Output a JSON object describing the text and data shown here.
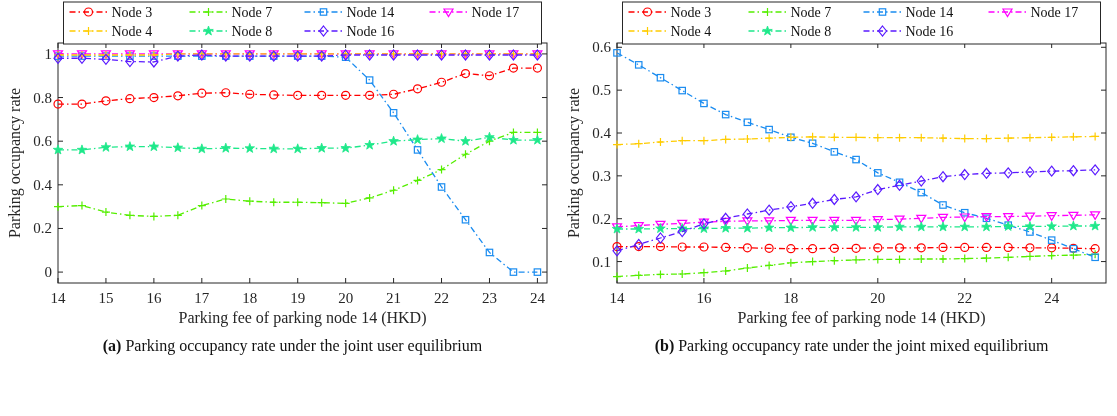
{
  "chart_data": [
    {
      "type": "line",
      "xlabel": "Parking fee of parking node 14 (HKD)",
      "ylabel": "Parking occupancy rate",
      "annotations": [
        "(a) Parking occupancy rate under the joint user equilibrium"
      ],
      "legend": "top",
      "line_style": "dashed",
      "grid": false,
      "x": [
        14,
        14.5,
        15,
        15.5,
        16,
        16.5,
        17,
        17.5,
        18,
        18.5,
        19,
        19.5,
        20,
        20.5,
        21,
        21.5,
        22,
        22.5,
        23,
        23.5,
        24
      ],
      "xlim": [
        14,
        24.2
      ],
      "xticks": [
        14,
        15,
        16,
        17,
        18,
        19,
        20,
        21,
        22,
        23,
        24
      ],
      "ylim": [
        -0.05,
        1.05
      ],
      "yticks": [
        0,
        0.2,
        0.4,
        0.6,
        0.8,
        1
      ],
      "series": [
        {
          "name": "Node 3",
          "color": "#ff0000",
          "marker": "circle",
          "values": [
            0.77,
            0.77,
            0.785,
            0.795,
            0.8,
            0.808,
            0.82,
            0.822,
            0.815,
            0.812,
            0.81,
            0.81,
            0.81,
            0.81,
            0.815,
            0.84,
            0.87,
            0.91,
            0.9,
            0.935,
            0.935
          ]
        },
        {
          "name": "Node 7",
          "color": "#55ee00",
          "marker": "cross",
          "values": [
            0.3,
            0.305,
            0.275,
            0.26,
            0.255,
            0.26,
            0.305,
            0.335,
            0.325,
            0.32,
            0.32,
            0.318,
            0.315,
            0.34,
            0.375,
            0.42,
            0.47,
            0.54,
            0.6,
            0.64,
            0.64
          ]
        },
        {
          "name": "Node 14",
          "color": "#1a8cf0",
          "marker": "square",
          "values": [
            0.99,
            0.99,
            0.99,
            0.99,
            0.99,
            0.99,
            0.99,
            0.99,
            0.99,
            0.99,
            0.99,
            0.99,
            0.985,
            0.88,
            0.73,
            0.56,
            0.39,
            0.24,
            0.09,
            0,
            0
          ]
        },
        {
          "name": "Node 17",
          "color": "#ff00ff",
          "marker": "triangle",
          "values": [
            1,
            1,
            1,
            1,
            1,
            1,
            1,
            1,
            1,
            1,
            1,
            1,
            1,
            1,
            1,
            1,
            1,
            1,
            1,
            1,
            1
          ]
        },
        {
          "name": "Node 4",
          "color": "#ffcc00",
          "marker": "cross",
          "values": [
            0.995,
            0.995,
            0.995,
            0.995,
            0.995,
            1,
            1,
            1,
            1,
            1,
            1,
            1,
            1,
            1,
            1,
            1,
            1,
            1,
            1,
            1,
            1
          ]
        },
        {
          "name": "Node 8",
          "color": "#1ee88a",
          "marker": "star",
          "values": [
            0.56,
            0.56,
            0.572,
            0.575,
            0.575,
            0.57,
            0.565,
            0.568,
            0.567,
            0.565,
            0.565,
            0.568,
            0.568,
            0.582,
            0.6,
            0.607,
            0.612,
            0.6,
            0.618,
            0.605,
            0.605
          ]
        },
        {
          "name": "Node 16",
          "color": "#5a1aff",
          "marker": "diamond",
          "values": [
            0.98,
            0.98,
            0.975,
            0.965,
            0.963,
            0.99,
            0.995,
            0.99,
            0.99,
            0.99,
            0.99,
            0.99,
            0.995,
            0.995,
            0.995,
            0.995,
            0.995,
            0.995,
            0.995,
            0.995,
            0.995
          ]
        }
      ]
    },
    {
      "type": "line",
      "xlabel": "Parking fee of parking node 14 (HKD)",
      "ylabel": "Parking occupancy rate",
      "annotations": [
        "(b) Parking occupancy rate under the joint mixed equilibrium"
      ],
      "legend": "top",
      "line_style": "dashed",
      "grid": false,
      "x": [
        14,
        14.5,
        15,
        15.5,
        16,
        16.5,
        17,
        17.5,
        18,
        18.5,
        19,
        19.5,
        20,
        20.5,
        21,
        21.5,
        22,
        22.5,
        23,
        23.5,
        24,
        24.5,
        25
      ],
      "xlim": [
        14,
        25.25
      ],
      "xticks": [
        14,
        16,
        18,
        20,
        22,
        24
      ],
      "ylim": [
        0.05,
        0.61
      ],
      "yticks": [
        0.1,
        0.2,
        0.3,
        0.4,
        0.5,
        0.6
      ],
      "series": [
        {
          "name": "Node 3",
          "color": "#ff0000",
          "marker": "circle",
          "values": [
            0.135,
            0.135,
            0.135,
            0.134,
            0.134,
            0.133,
            0.132,
            0.131,
            0.13,
            0.13,
            0.131,
            0.131,
            0.132,
            0.132,
            0.132,
            0.133,
            0.133,
            0.133,
            0.133,
            0.132,
            0.132,
            0.131,
            0.13
          ]
        },
        {
          "name": "Node 7",
          "color": "#55ee00",
          "marker": "cross",
          "values": [
            0.065,
            0.068,
            0.07,
            0.071,
            0.074,
            0.078,
            0.085,
            0.091,
            0.097,
            0.1,
            0.102,
            0.104,
            0.105,
            0.105,
            0.106,
            0.106,
            0.107,
            0.108,
            0.11,
            0.112,
            0.114,
            0.115,
            0.117
          ]
        },
        {
          "name": "Node 14",
          "color": "#1a8cf0",
          "marker": "square",
          "values": [
            0.587,
            0.559,
            0.529,
            0.499,
            0.469,
            0.443,
            0.425,
            0.408,
            0.39,
            0.376,
            0.356,
            0.338,
            0.307,
            0.285,
            0.261,
            0.232,
            0.214,
            0.201,
            0.185,
            0.169,
            0.15,
            0.13,
            0.11
          ]
        },
        {
          "name": "Node 17",
          "color": "#ff00ff",
          "marker": "triangle",
          "values": [
            0.181,
            0.184,
            0.187,
            0.189,
            0.192,
            0.194,
            0.195,
            0.195,
            0.196,
            0.196,
            0.196,
            0.196,
            0.198,
            0.199,
            0.201,
            0.203,
            0.204,
            0.205,
            0.205,
            0.206,
            0.207,
            0.208,
            0.209
          ]
        },
        {
          "name": "Node 4",
          "color": "#ffcc00",
          "marker": "cross",
          "values": [
            0.373,
            0.375,
            0.379,
            0.382,
            0.382,
            0.385,
            0.386,
            0.388,
            0.39,
            0.391,
            0.39,
            0.39,
            0.389,
            0.389,
            0.389,
            0.388,
            0.387,
            0.387,
            0.388,
            0.389,
            0.39,
            0.391,
            0.392
          ]
        },
        {
          "name": "Node 8",
          "color": "#1ee88a",
          "marker": "star",
          "values": [
            0.176,
            0.176,
            0.177,
            0.177,
            0.177,
            0.178,
            0.178,
            0.179,
            0.179,
            0.18,
            0.18,
            0.18,
            0.18,
            0.181,
            0.181,
            0.181,
            0.181,
            0.181,
            0.182,
            0.182,
            0.182,
            0.183,
            0.183
          ]
        },
        {
          "name": "Node 16",
          "color": "#5a1aff",
          "marker": "diamond",
          "values": [
            0.125,
            0.14,
            0.155,
            0.17,
            0.188,
            0.201,
            0.211,
            0.22,
            0.228,
            0.236,
            0.245,
            0.251,
            0.268,
            0.278,
            0.288,
            0.298,
            0.303,
            0.306,
            0.307,
            0.309,
            0.311,
            0.312,
            0.314
          ]
        }
      ]
    }
  ]
}
